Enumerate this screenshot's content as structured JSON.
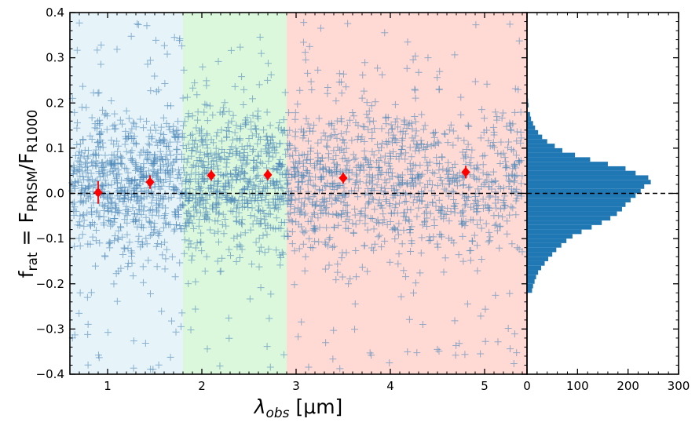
{
  "chart_data": [
    {
      "type": "scatter",
      "title": "",
      "xlabel": "λobs [μm]",
      "xlabel_parts": {
        "symbol": "λ",
        "sub": "obs",
        "unit": "[μm]"
      },
      "ylabel": "frat = FPRISM/FR1000",
      "ylabel_parts": {
        "f": "f",
        "rat": "rat",
        "eq": "=",
        "F1": "F",
        "prism": "PRISM",
        "slash": "/",
        "F2": "F",
        "r1000": "R1000"
      },
      "xlim": [
        0.6,
        5.45
      ],
      "ylim": [
        -0.4,
        0.4
      ],
      "x_ticks": [
        1,
        2,
        3,
        4,
        5
      ],
      "x_tick_labels": [
        "1",
        "2",
        "3",
        "4",
        "5"
      ],
      "y_ticks": [
        -0.4,
        -0.3,
        -0.2,
        -0.1,
        0.0,
        0.1,
        0.2,
        0.3,
        0.4
      ],
      "y_tick_labels": [
        "−0.4",
        "−0.3",
        "−0.2",
        "−0.1",
        "0.0",
        "0.1",
        "0.2",
        "0.3",
        "0.4"
      ],
      "grid": false,
      "reference_line": {
        "y": 0.0,
        "style": "dashed",
        "color": "#000000"
      },
      "bands": [
        {
          "x0": 0.6,
          "x1": 1.8,
          "color": "#e6f3f8"
        },
        {
          "x0": 1.8,
          "x1": 2.9,
          "color": "#dcf8dc"
        },
        {
          "x0": 2.9,
          "x1": 5.45,
          "color": "#ffd9d4"
        }
      ],
      "scatter": {
        "marker": "+",
        "color": "#4a86b8",
        "approx_count": 2400,
        "distribution": "sample points scattered around 0 with standard deviation ~0.1, spanning 0.6–5.45 μm"
      },
      "binned_points": {
        "color": "#ff0000",
        "marker": "diamond",
        "x": [
          0.9,
          1.45,
          2.1,
          2.7,
          3.5,
          4.8
        ],
        "y": [
          0.002,
          0.025,
          0.04,
          0.041,
          0.034,
          0.047
        ],
        "yerr": [
          0.025,
          0.015,
          0.012,
          0.012,
          0.012,
          0.014
        ]
      }
    },
    {
      "type": "bar",
      "orientation": "horizontal",
      "title": "",
      "xlabel": "",
      "ylabel": "",
      "xlim": [
        0,
        300
      ],
      "ylim": [
        -0.4,
        0.4
      ],
      "x_ticks": [
        0,
        100,
        200,
        300
      ],
      "x_tick_labels": [
        "0",
        "100",
        "200",
        "300"
      ],
      "color": "#1f77b4",
      "bin_width": 0.01,
      "bin_centers": [
        -0.215,
        -0.205,
        -0.195,
        -0.185,
        -0.175,
        -0.165,
        -0.155,
        -0.145,
        -0.135,
        -0.125,
        -0.115,
        -0.105,
        -0.095,
        -0.085,
        -0.075,
        -0.065,
        -0.055,
        -0.045,
        -0.035,
        -0.025,
        -0.015,
        -0.005,
        0.005,
        0.015,
        0.025,
        0.035,
        0.045,
        0.055,
        0.065,
        0.075,
        0.085,
        0.095,
        0.105,
        0.115,
        0.125,
        0.135,
        0.145,
        0.155,
        0.165,
        0.175,
        0.195,
        0.205,
        0.215
      ],
      "counts": [
        10,
        12,
        15,
        18,
        22,
        28,
        35,
        42,
        50,
        58,
        68,
        78,
        90,
        108,
        128,
        148,
        165,
        178,
        188,
        195,
        205,
        215,
        225,
        232,
        245,
        240,
        215,
        195,
        160,
        125,
        95,
        70,
        55,
        40,
        30,
        22,
        16,
        12,
        8,
        6,
        3,
        2,
        1
      ]
    }
  ]
}
